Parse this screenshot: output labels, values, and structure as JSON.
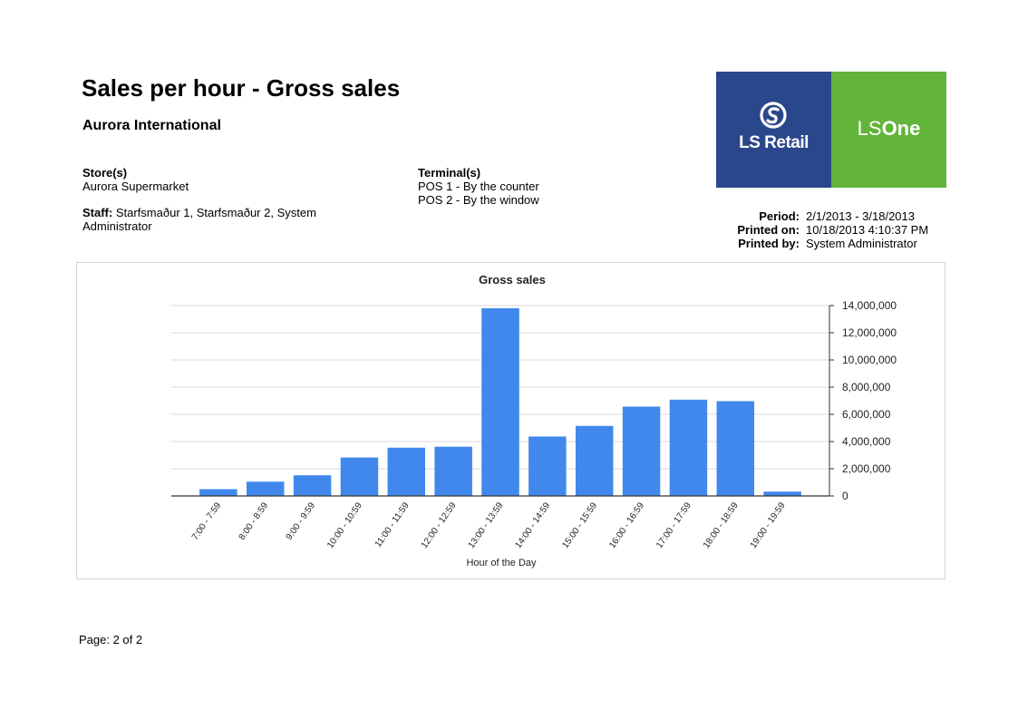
{
  "report": {
    "title": "Sales per hour - Gross sales",
    "company": "Aurora International",
    "stores_label": "Store(s)",
    "stores_value": "Aurora Supermarket",
    "terminals_label": "Terminal(s)",
    "terminals": [
      "POS 1 - By the counter",
      "POS 2 - By the window"
    ],
    "staff_label": "Staff:",
    "staff_value_line1": "Starfsmaður 1, Starfsmaður 2, System",
    "staff_value_line2": "Administrator",
    "period_label": "Period:",
    "period_value": "2/1/2013 - 3/18/2013",
    "printed_on_label": "Printed on:",
    "printed_on_value": "10/18/2013 4:10:37 PM",
    "printed_by_label": "Printed by:",
    "printed_by_value": "System Administrator",
    "footer": "Page: 2 of 2"
  },
  "logo": {
    "left_text": "LS Retail",
    "right_text_light": "LS",
    "right_text_bold": "One",
    "left_color": "#2b478b",
    "right_color": "#63b43a"
  },
  "chart_data": {
    "type": "bar",
    "title": "Gross sales",
    "xlabel": "Hour of the Day",
    "ylabel": "",
    "categories": [
      "7:00 - 7:59",
      "8:00 - 8:59",
      "9:00 - 9:59",
      "10:00 - 10:59",
      "11:00 - 11:59",
      "12:00 - 12:59",
      "13:00 - 13:59",
      "14:00 - 14:59",
      "15:00 - 15:59",
      "16:00 - 16:59",
      "17:00 - 17:59",
      "18:00 - 18:59",
      "19:00 - 19:59"
    ],
    "values": [
      500000,
      1050000,
      1520000,
      2830000,
      3550000,
      3620000,
      13800000,
      4370000,
      5150000,
      6570000,
      7080000,
      6970000,
      320000
    ],
    "yticks": [
      "0",
      "2,000,000",
      "4,000,000",
      "6,000,000",
      "8,000,000",
      "10,000,000",
      "12,000,000",
      "14,000,000"
    ],
    "ylim": [
      0,
      14000000
    ],
    "bar_color": "#4188ec",
    "grid": true,
    "yaxis_side": "right"
  }
}
